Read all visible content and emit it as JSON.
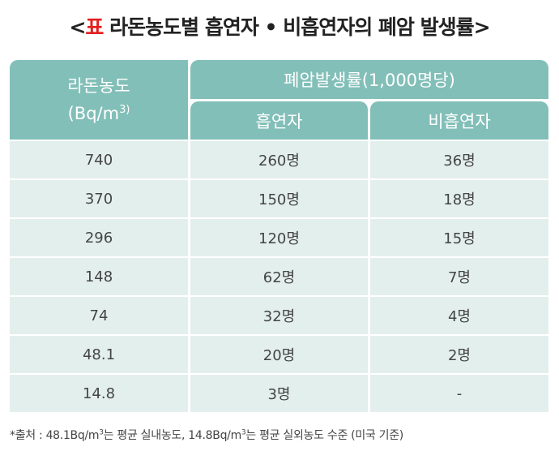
{
  "title": {
    "open_bracket": "<",
    "tag": "표",
    "text": " 라돈농도별 흡연자 • 비흡연자의 폐암 발생률",
    "close_bracket": ">"
  },
  "header": {
    "col0_line1": "라돈농도",
    "col0_line2": "(Bq/m",
    "col0_sup": "3)",
    "group": "폐암발생률(1,000명당)",
    "col1": "흡연자",
    "col2": "비흡연자"
  },
  "rows": [
    {
      "radon": "740",
      "smoker": "260명",
      "nonsmoker": "36명"
    },
    {
      "radon": "370",
      "smoker": "150명",
      "nonsmoker": "18명"
    },
    {
      "radon": "296",
      "smoker": "120명",
      "nonsmoker": "15명"
    },
    {
      "radon": "148",
      "smoker": "62명",
      "nonsmoker": "7명"
    },
    {
      "radon": "74",
      "smoker": "32명",
      "nonsmoker": "4명"
    },
    {
      "radon": "48.1",
      "smoker": "20명",
      "nonsmoker": "2명"
    },
    {
      "radon": "14.8",
      "smoker": "3명",
      "nonsmoker": "-"
    }
  ],
  "footnote": {
    "part1": "*출처 : 48.1Bq/m",
    "sup1": "3",
    "part2": "는 평균 실내농도, 14.8Bq/m",
    "sup2": "3",
    "part3": "는 평균 실외농도 수준 (미국 기준)"
  },
  "colors": {
    "header_bg": "#82bfb8",
    "row_bg": "#e3efed",
    "tag": "#e41e1e"
  }
}
